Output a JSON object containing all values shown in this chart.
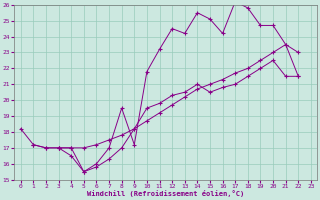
{
  "xlabel": "Windchill (Refroidissement éolien,°C)",
  "bg_color": "#cce8e0",
  "line_color": "#880088",
  "grid_color": "#99ccbb",
  "xlim": [
    -0.5,
    23.5
  ],
  "ylim": [
    15,
    26
  ],
  "yticks": [
    15,
    16,
    17,
    18,
    19,
    20,
    21,
    22,
    23,
    24,
    25,
    26
  ],
  "xticks": [
    0,
    1,
    2,
    3,
    4,
    5,
    6,
    7,
    8,
    9,
    10,
    11,
    12,
    13,
    14,
    15,
    16,
    17,
    18,
    19,
    20,
    21,
    22,
    23
  ],
  "curve1_x": [
    0,
    1,
    2,
    3,
    4,
    5,
    6,
    7,
    8,
    9,
    10,
    11,
    12,
    13,
    14,
    15,
    16,
    17,
    18,
    19,
    20,
    21,
    22
  ],
  "curve1_y": [
    18.2,
    17.2,
    17.0,
    17.0,
    17.0,
    17.0,
    17.2,
    17.5,
    17.8,
    18.2,
    18.7,
    19.2,
    19.7,
    20.2,
    20.7,
    21.0,
    21.3,
    21.7,
    22.0,
    22.5,
    23.0,
    23.5,
    21.5
  ],
  "curve2_x": [
    1,
    2,
    3,
    4,
    5,
    6,
    7,
    8,
    9,
    10,
    11,
    12,
    13,
    14,
    15,
    16,
    17,
    18,
    19,
    20,
    21,
    22
  ],
  "curve2_y": [
    17.2,
    17.0,
    17.0,
    17.0,
    15.5,
    15.8,
    16.3,
    17.0,
    18.2,
    19.5,
    19.8,
    20.3,
    20.5,
    21.0,
    20.5,
    20.8,
    21.0,
    21.5,
    22.0,
    22.5,
    21.5,
    21.5
  ],
  "curve3_x": [
    3,
    4,
    5,
    6,
    7,
    8,
    9,
    10,
    11,
    12,
    13,
    14,
    15,
    16,
    17,
    18,
    19,
    20,
    21,
    22
  ],
  "curve3_y": [
    17.0,
    16.5,
    15.5,
    16.0,
    17.0,
    19.5,
    17.2,
    21.8,
    23.2,
    24.5,
    24.2,
    25.5,
    25.1,
    24.2,
    26.2,
    25.8,
    24.7,
    24.7,
    23.5,
    23.0
  ]
}
